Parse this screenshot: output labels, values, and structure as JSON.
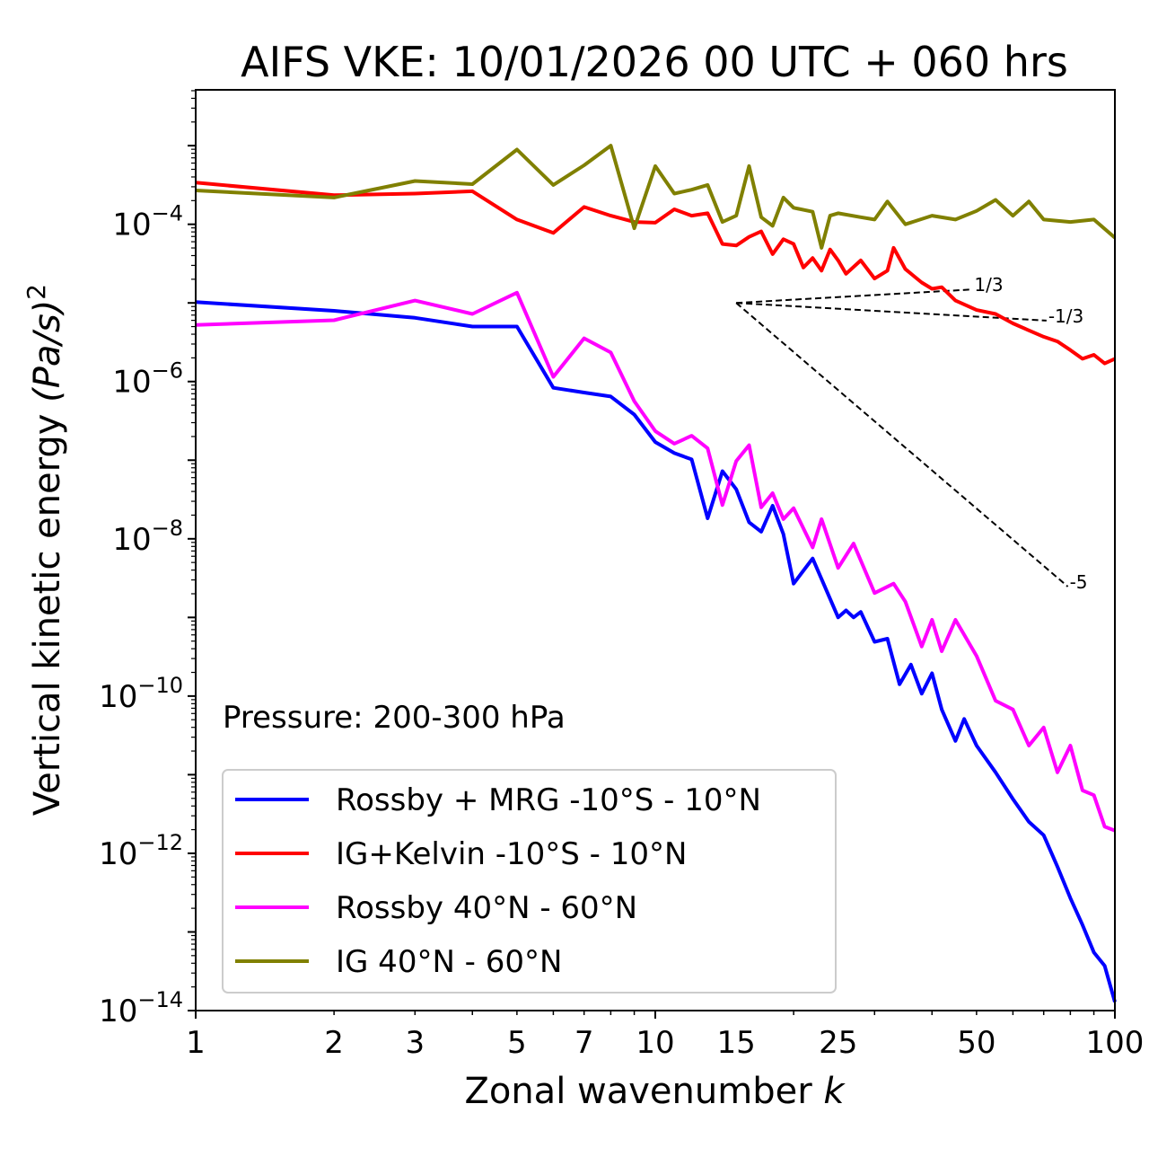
{
  "chart_data": {
    "type": "line",
    "title": "AIFS VKE: 10/01/2026 00 UTC + 060 hrs",
    "xlabel": "Zonal wavenumber",
    "xlabel_var": "k",
    "ylabel": "Vertical kinetic energy",
    "ylabel_units": "(Pa/s)",
    "ylabel_power": "2",
    "xscale": "log",
    "yscale": "log",
    "xlim": [
      1,
      100
    ],
    "ylim_log10": [
      -14,
      -2.29
    ],
    "x_tick_labels": [
      "1",
      "2",
      "3",
      "5",
      "7",
      "10",
      "15",
      "25",
      "50",
      "100"
    ],
    "y_tick_exponents": [
      "−4",
      "−6",
      "−8",
      "−10",
      "−12",
      "−14"
    ],
    "y_tick_base": "10",
    "annotation": "Pressure: 200-300 hPa",
    "legend_placement": "lower-left",
    "series": [
      {
        "name": "Rossby + MRG -10°S - 10°N",
        "color": "#0000ff",
        "k": [
          1,
          2,
          3,
          4,
          5,
          6,
          7,
          8,
          9,
          10,
          11,
          12,
          13,
          14,
          15,
          16,
          17,
          18,
          19,
          20,
          22,
          25,
          26,
          27,
          28,
          30,
          32,
          34,
          36,
          38,
          40,
          42,
          45,
          47,
          50,
          55,
          60,
          65,
          70,
          75,
          80,
          85,
          90,
          95,
          100
        ],
        "log10_values": [
          -4.99,
          -5.1,
          -5.19,
          -5.3,
          -5.3,
          -6.08,
          -6.14,
          -6.19,
          -6.42,
          -6.77,
          -6.91,
          -6.99,
          -7.74,
          -7.14,
          -7.37,
          -7.79,
          -7.91,
          -7.58,
          -7.94,
          -8.57,
          -8.25,
          -9.0,
          -8.91,
          -9.0,
          -8.93,
          -9.31,
          -9.27,
          -9.85,
          -9.6,
          -9.97,
          -9.71,
          -10.17,
          -10.57,
          -10.29,
          -10.63,
          -10.97,
          -11.31,
          -11.6,
          -11.77,
          -12.17,
          -12.57,
          -12.91,
          -13.26,
          -13.43,
          -13.89
        ]
      },
      {
        "name": "IG+Kelvin -10°S - 10°N",
        "color": "#ff0000",
        "k": [
          1,
          2,
          3,
          4,
          5,
          6,
          7,
          8,
          9,
          10,
          11,
          12,
          13,
          14,
          15,
          16,
          17,
          18,
          19,
          20,
          21,
          22,
          23,
          24,
          25,
          26,
          28,
          30,
          32,
          33,
          35,
          38,
          40,
          42,
          45,
          50,
          55,
          60,
          65,
          70,
          75,
          80,
          85,
          90,
          95,
          100
        ],
        "log10_values": [
          -3.47,
          -3.63,
          -3.61,
          -3.58,
          -3.94,
          -4.11,
          -3.78,
          -3.89,
          -3.97,
          -3.98,
          -3.81,
          -3.89,
          -3.86,
          -4.25,
          -4.27,
          -4.16,
          -4.09,
          -4.38,
          -4.19,
          -4.25,
          -4.55,
          -4.43,
          -4.59,
          -4.32,
          -4.46,
          -4.63,
          -4.46,
          -4.69,
          -4.59,
          -4.3,
          -4.57,
          -4.74,
          -4.82,
          -4.8,
          -4.97,
          -5.09,
          -5.14,
          -5.26,
          -5.35,
          -5.43,
          -5.49,
          -5.6,
          -5.71,
          -5.66,
          -5.77,
          -5.71
        ]
      },
      {
        "name": "Rossby 40°N - 60°N",
        "color": "#ff00ff",
        "k": [
          1,
          2,
          3,
          4,
          5,
          6,
          7,
          8,
          9,
          10,
          11,
          12,
          13,
          14,
          15,
          16,
          17,
          18,
          19,
          20,
          22,
          23,
          25,
          27,
          30,
          33,
          35,
          38,
          40,
          42,
          45,
          50,
          55,
          60,
          65,
          70,
          75,
          80,
          85,
          90,
          95,
          100
        ],
        "log10_values": [
          -5.28,
          -5.22,
          -4.97,
          -5.14,
          -4.87,
          -5.94,
          -5.45,
          -5.63,
          -6.25,
          -6.63,
          -6.79,
          -6.69,
          -6.85,
          -7.57,
          -7.01,
          -6.81,
          -7.6,
          -7.42,
          -7.75,
          -7.61,
          -8.11,
          -7.75,
          -8.37,
          -8.06,
          -8.69,
          -8.57,
          -8.8,
          -9.37,
          -9.03,
          -9.43,
          -9.03,
          -9.49,
          -10.06,
          -10.17,
          -10.63,
          -10.4,
          -10.97,
          -10.63,
          -11.2,
          -11.26,
          -11.66,
          -11.71
        ]
      },
      {
        "name": "IG 40°N - 60°N",
        "color": "#808000",
        "k": [
          1,
          2,
          3,
          4,
          5,
          6,
          7,
          8,
          9,
          10,
          11,
          12,
          13,
          14,
          15,
          16,
          17,
          18,
          19,
          20,
          22,
          23,
          24,
          25,
          28,
          30,
          32,
          35,
          40,
          45,
          50,
          55,
          60,
          65,
          70,
          80,
          90,
          100
        ],
        "log10_values": [
          -3.57,
          -3.66,
          -3.45,
          -3.49,
          -3.05,
          -3.5,
          -3.25,
          -3.0,
          -4.05,
          -3.26,
          -3.61,
          -3.56,
          -3.5,
          -3.97,
          -3.89,
          -3.26,
          -3.91,
          -4.02,
          -3.66,
          -3.79,
          -3.84,
          -4.3,
          -3.89,
          -3.86,
          -3.91,
          -3.94,
          -3.71,
          -4.0,
          -3.89,
          -3.94,
          -3.83,
          -3.69,
          -3.89,
          -3.71,
          -3.94,
          -3.97,
          -3.94,
          -4.17
        ]
      }
    ],
    "reference_slopes": [
      {
        "label": "1/3",
        "slope": 0.3333,
        "k_start": 15,
        "k_end": 49,
        "log10_start": -5.0
      },
      {
        "label": "-1/3",
        "slope": -0.3333,
        "k_start": 15,
        "k_end": 71,
        "log10_start": -5.0
      },
      {
        "label": "-5",
        "slope": -5,
        "k_start": 15,
        "k_end": 79,
        "log10_start": -5.0
      }
    ]
  }
}
